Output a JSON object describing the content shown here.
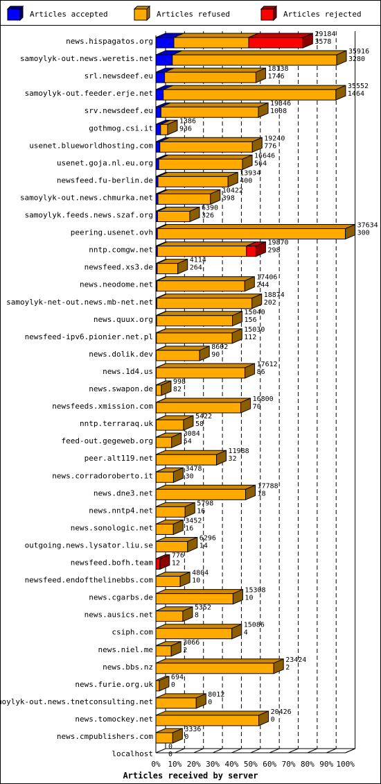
{
  "legend": [
    {
      "label": "Articles accepted",
      "color": "#0000ff"
    },
    {
      "label": "Articles refused",
      "color": "#ffaa00"
    },
    {
      "label": "Articles rejected",
      "color": "#ff0000"
    }
  ],
  "chart_data": {
    "type": "bar",
    "orientation": "horizontal",
    "stacking": "stacked",
    "style": "3d",
    "xlabel": "Articles received by server",
    "xlim": [
      0,
      100
    ],
    "x_unit": "percent of largest server total",
    "x_ticks": [
      "0%",
      "10%",
      "20%",
      "30%",
      "40%",
      "50%",
      "60%",
      "70%",
      "80%",
      "90%",
      "100%"
    ],
    "categories": [
      "news.hispagatos.org",
      "samoylyk-out.news.weretis.net",
      "srl.newsdeef.eu",
      "samoylyk-out.feeder.erje.net",
      "srv.newsdeef.eu",
      "gothmog.csi.it",
      "usenet.blueworldhosting.com",
      "usenet.goja.nl.eu.org",
      "newsfeed.fu-berlin.de",
      "samoylyk-out.news.chmurka.net",
      "samoylyk.feeds.news.szaf.org",
      "peering.usenet.ovh",
      "nntp.comgw.net",
      "newsfeed.xs3.de",
      "news.neodome.net",
      "samoylyk-net-out.news.mb-net.net",
      "news.quux.org",
      "newsfeed-ipv6.pionier.net.pl",
      "news.dolik.dev",
      "news.1d4.us",
      "news.swapon.de",
      "newsfeeds.xmission.com",
      "nntp.terraraq.uk",
      "feed-out.gegeweb.org",
      "peer.alt119.net",
      "news.corradoroberto.it",
      "news.dne3.net",
      "news.nntp4.net",
      "news.sonologic.net",
      "outgoing.news.lysator.liu.se",
      "newsfeed.bofh.team",
      "newsfeed.endofthelinebbs.com",
      "news.cgarbs.de",
      "news.ausics.net",
      "csiph.com",
      "news.niel.me",
      "news.bbs.nz",
      "news.furie.org.uk",
      "samoylyk-out.news.tnetconsulting.net",
      "news.tomockey.net",
      "news.cmpublishers.com",
      "localhost"
    ],
    "printed_values": {
      "upper": [
        29184,
        35916,
        18138,
        35552,
        19346,
        1386,
        19240,
        16646,
        13934,
        10422,
        6390,
        37634,
        19870,
        4114,
        17406,
        18874,
        15040,
        15030,
        8602,
        17612,
        998,
        16800,
        5422,
        3084,
        11988,
        3478,
        17788,
        5798,
        3452,
        6296,
        776,
        4804,
        15308,
        5352,
        15086,
        3066,
        23424,
        694,
        8012,
        20426,
        3336,
        0
      ],
      "lower": [
        3578,
        3280,
        1746,
        1464,
        1008,
        936,
        776,
        564,
        400,
        398,
        326,
        300,
        298,
        264,
        244,
        202,
        156,
        112,
        90,
        86,
        82,
        70,
        58,
        54,
        32,
        30,
        18,
        16,
        16,
        14,
        12,
        10,
        10,
        8,
        4,
        2,
        2,
        0,
        0,
        0,
        0,
        0
      ]
    },
    "series": [
      {
        "name": "Articles accepted",
        "color": "#0000ff",
        "values": [
          9.5,
          8.7,
          4.6,
          3.9,
          2.7,
          2.5,
          2.1,
          1.5,
          1.1,
          1.1,
          0.9,
          0.8,
          0.8,
          0.7,
          0.6,
          0.5,
          0.4,
          0.3,
          0.2,
          0.2,
          0.2,
          0.2,
          0.2,
          0.1,
          0.1,
          0.1,
          0.05,
          0.04,
          0.04,
          0.04,
          0.03,
          0.03,
          0.03,
          0.02,
          0.01,
          0.01,
          0.01,
          0,
          0,
          0,
          0,
          0
        ]
      },
      {
        "name": "Articles refused",
        "color": "#ffaa00",
        "values": [
          39.5,
          86.7,
          48.2,
          91.1,
          51.4,
          3.7,
          48.8,
          44.2,
          37.0,
          27.7,
          17.0,
          99.2,
          47.0,
          10.9,
          46.3,
          50.2,
          40.0,
          40.0,
          22.9,
          46.8,
          2.7,
          44.6,
          14.4,
          8.2,
          31.9,
          9.2,
          47.3,
          15.4,
          9.2,
          16.7,
          0,
          12.8,
          40.7,
          14.2,
          40.1,
          8.1,
          62.2,
          1.8,
          21.3,
          54.3,
          8.9,
          0
        ]
      },
      {
        "name": "Articles rejected",
        "color": "#ff0000",
        "values": [
          28.6,
          0,
          0,
          0,
          0,
          0,
          0,
          0,
          0,
          0,
          0,
          0,
          5.0,
          0,
          0,
          0,
          0,
          0,
          0,
          0,
          0,
          0,
          0,
          0,
          0,
          0,
          0,
          0,
          0,
          0,
          2.1,
          0,
          0,
          0,
          0,
          0,
          0,
          0,
          0,
          0,
          0,
          0
        ]
      }
    ]
  }
}
